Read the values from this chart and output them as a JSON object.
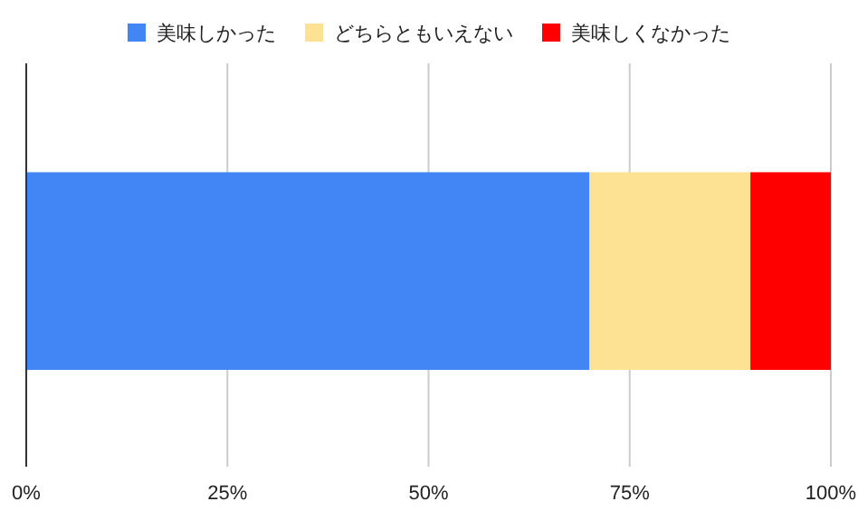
{
  "chart_data": {
    "type": "bar",
    "orientation": "horizontal",
    "stacked": true,
    "categories": [
      null
    ],
    "series": [
      {
        "name": "美味しかった",
        "color": "#4285f4",
        "values": [
          70
        ]
      },
      {
        "name": "どちらともいえない",
        "color": "#fde293",
        "values": [
          20
        ]
      },
      {
        "name": "美味しくなかった",
        "color": "#ff0000",
        "values": [
          10
        ]
      }
    ],
    "xlim": [
      0,
      100
    ],
    "xticks": [
      {
        "value": 0,
        "label": "0%"
      },
      {
        "value": 25,
        "label": "25%"
      },
      {
        "value": 50,
        "label": "50%"
      },
      {
        "value": 75,
        "label": "75%"
      },
      {
        "value": 100,
        "label": "100%"
      }
    ],
    "grid": "x",
    "legend": "top",
    "tick_labels": "x"
  }
}
